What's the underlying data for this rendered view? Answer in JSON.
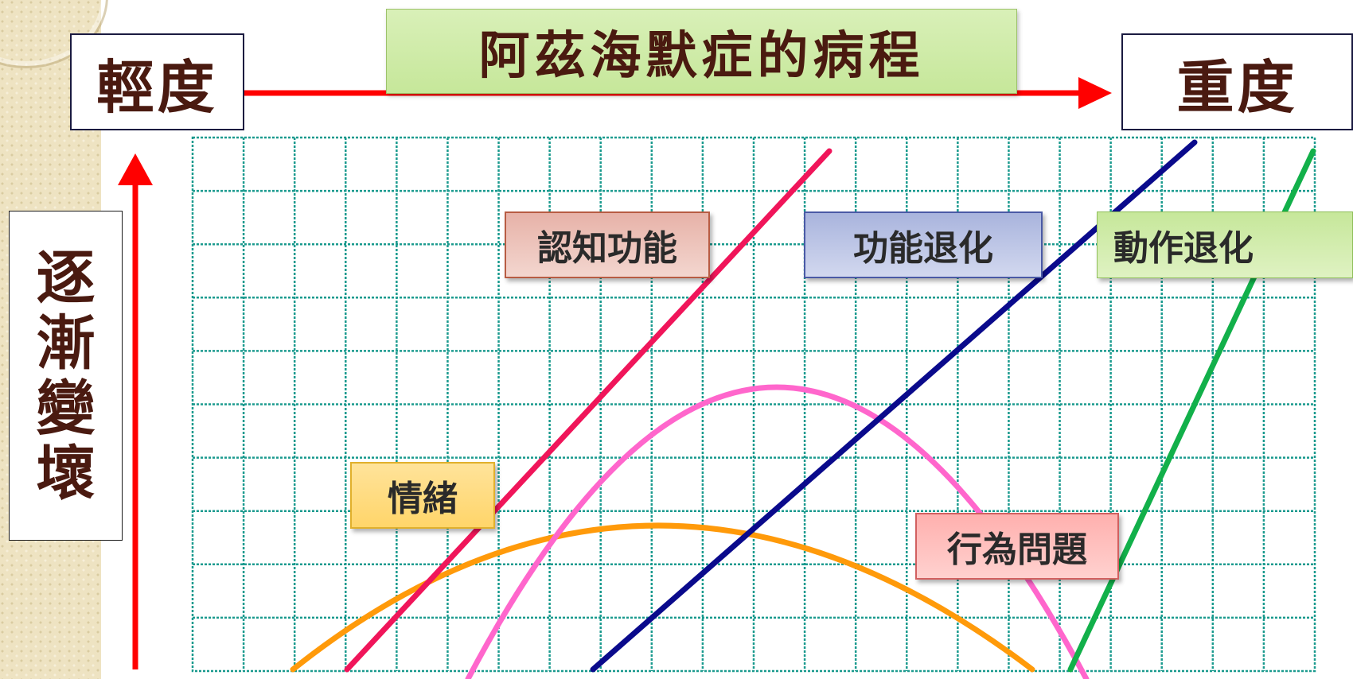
{
  "title": "阿茲海默症的病程",
  "axis": {
    "left_label": "輕度",
    "right_label": "重度",
    "vertical_label_chars": [
      "逐",
      "漸",
      "變",
      "壞"
    ]
  },
  "curves": [
    {
      "key": "cognition",
      "label": "認知功能",
      "color": "#f0155a",
      "shape": "line"
    },
    {
      "key": "function",
      "label": "功能退化",
      "color": "#0a0a8c",
      "shape": "line"
    },
    {
      "key": "motor",
      "label": "動作退化",
      "color": "#12b04a",
      "shape": "line"
    },
    {
      "key": "emotion",
      "label": "情緒",
      "color": "#ff9a0a",
      "shape": "arch"
    },
    {
      "key": "behavior",
      "label": "行為問題",
      "color": "#ff66cc",
      "shape": "arch"
    }
  ],
  "colors": {
    "arrow": "#ff0000",
    "grid": "#1a9a8e"
  }
}
